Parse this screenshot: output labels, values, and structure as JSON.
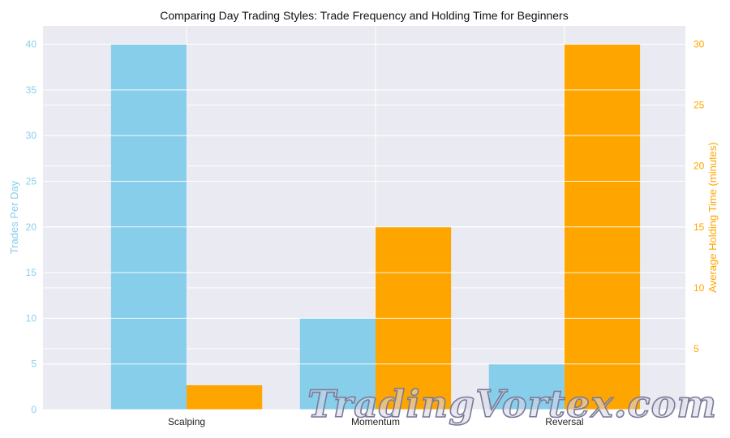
{
  "chart_data": {
    "type": "bar",
    "title": "Comparing Day Trading Styles: Trade Frequency and Holding Time for Beginners",
    "categories": [
      "Scalping",
      "Momentum",
      "Reversal"
    ],
    "series": [
      {
        "name": "Trades Per Day",
        "axis": "left",
        "color": "#87ceeb",
        "values": [
          40,
          10,
          5
        ]
      },
      {
        "name": "Average Holding Time (minutes)",
        "axis": "right",
        "color": "#ffa500",
        "values": [
          2,
          15,
          30
        ]
      }
    ],
    "ylabel": "Trades Per Day",
    "ylabel_right": "Average Holding Time (minutes)",
    "ylim": [
      0,
      42
    ],
    "ylim_right": [
      0,
      31.5
    ],
    "yticks": [
      0,
      5,
      10,
      15,
      20,
      25,
      30,
      35,
      40
    ],
    "yticks_right": [
      5,
      10,
      15,
      20,
      25,
      30
    ],
    "grid": true,
    "background": "#eaeaf2"
  },
  "watermark": "TradingVortex.com"
}
